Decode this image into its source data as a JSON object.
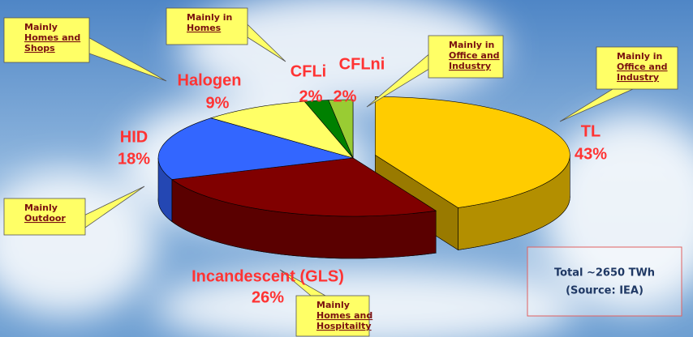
{
  "chart_data": {
    "type": "pie",
    "categories": [
      "TL",
      "Incandescent (GLS)",
      "HID",
      "Halogen",
      "CFLi",
      "CFLni"
    ],
    "values": [
      43,
      26,
      18,
      9,
      2,
      2
    ],
    "value_labels": [
      "43%",
      "26%",
      "18%",
      "9%",
      "2%",
      "2%"
    ],
    "colors": [
      "#ffcc00",
      "#800000",
      "#3366ff",
      "#ffff66",
      "#008000",
      "#99cc33"
    ],
    "annotations": [
      {
        "lines": [
          "Mainly",
          "Homes and",
          "Shops"
        ]
      },
      {
        "lines": [
          "Mainly in",
          "Homes"
        ]
      },
      {
        "lines": [
          "Mainly in",
          "Office and",
          "Industry"
        ]
      },
      {
        "lines": [
          "Mainly in",
          "Office and",
          "Industry"
        ]
      },
      {
        "lines": [
          "Mainly",
          "Outdoor"
        ]
      },
      {
        "lines": [
          "Mainly",
          "Homes and",
          "Hospitailty"
        ]
      }
    ],
    "text_box": {
      "lines": [
        "Total ~2650 TWh",
        "(Source: IEA)"
      ]
    }
  }
}
